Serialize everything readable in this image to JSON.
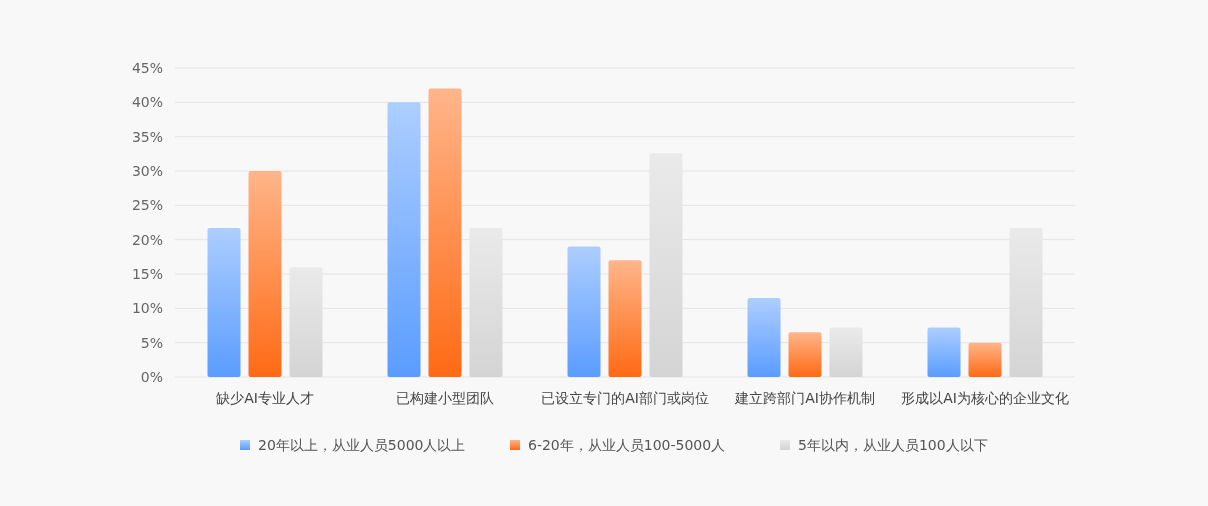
{
  "chart_data": {
    "type": "bar",
    "categories": [
      "缺少AI专业人才",
      "已构建小型团队",
      "已设立专门的AI部门或岗位",
      "建立跨部门AI协作机制",
      "形成以AI为核心的企业文化"
    ],
    "series": [
      {
        "name": "20年以上，从业人员5000人以上",
        "color": "#5a9cff",
        "values": [
          21.7,
          40,
          19,
          11.5,
          7.2
        ]
      },
      {
        "name": "6-20年，从业人员100-5000人",
        "color": "#ff6a14",
        "values": [
          30,
          42,
          17,
          6.5,
          5
        ]
      },
      {
        "name": "5年以内，从业人员100人以下",
        "color": "#d4d4d4",
        "values": [
          16,
          21.7,
          32.6,
          7.2,
          21.7
        ]
      }
    ],
    "ylim": [
      0,
      45
    ],
    "yticks": [
      {
        "value": 0,
        "label": "0%"
      },
      {
        "value": 5,
        "label": "5%"
      },
      {
        "value": 10,
        "label": "10%"
      },
      {
        "value": 15,
        "label": "15%"
      },
      {
        "value": 20,
        "label": "20%"
      },
      {
        "value": 25,
        "label": "25%"
      },
      {
        "value": 30,
        "label": "30%"
      },
      {
        "value": 35,
        "label": "35%"
      },
      {
        "value": 40,
        "label": "40%"
      },
      {
        "value": 45,
        "label": "45%"
      }
    ],
    "grid": "y",
    "legend": "bottom"
  }
}
